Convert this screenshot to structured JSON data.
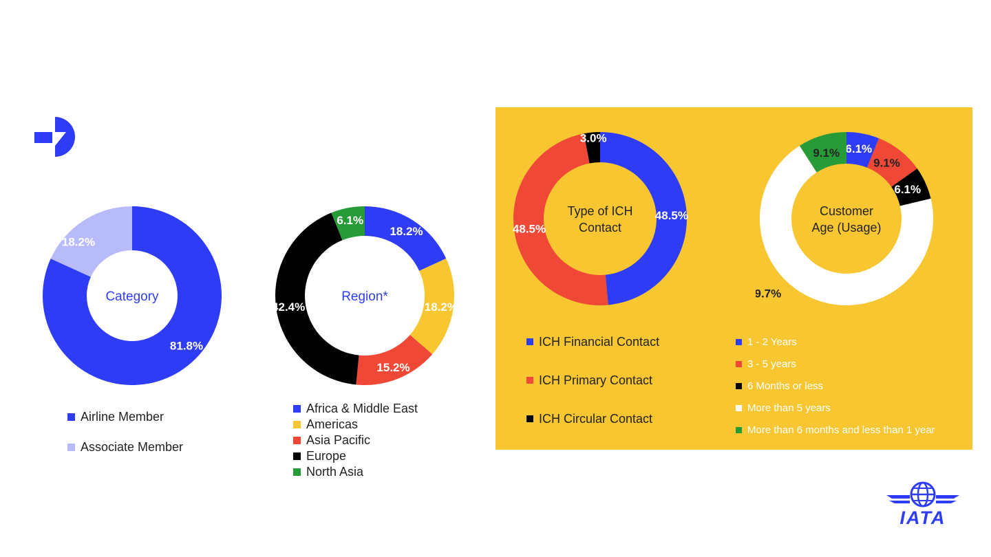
{
  "colors": {
    "blue": "#2e3cf5",
    "light_blue": "#b8bbf9",
    "yellow": "#f8c631",
    "red": "#f04836",
    "black": "#000000",
    "green": "#279b37",
    "white": "#ffffff",
    "panel": "#f8c631"
  },
  "chart_data": [
    {
      "type": "pie",
      "donut": true,
      "center_label": "Category",
      "series": [
        {
          "name": "Airline Member",
          "value": 81.8,
          "label": "81.8%",
          "color": "#2e3cf5"
        },
        {
          "name": "Associate Member",
          "value": 18.2,
          "label": "18.2%",
          "color": "#b8bbf9"
        }
      ],
      "legend": "bottom"
    },
    {
      "type": "pie",
      "donut": true,
      "center_label": "Region*",
      "series": [
        {
          "name": "Africa & Middle East",
          "value": 18.2,
          "label": "18.2%",
          "color": "#2e3cf5"
        },
        {
          "name": "Americas",
          "value": 18.2,
          "label": "18.2%",
          "color": "#f8c631"
        },
        {
          "name": "Asia Pacific",
          "value": 15.2,
          "label": "15.2%",
          "color": "#f04836"
        },
        {
          "name": "Europe",
          "value": 42.4,
          "label": "42.4%",
          "color": "#000000"
        },
        {
          "name": "North Asia",
          "value": 6.1,
          "label": "6.1%",
          "color": "#279b37"
        }
      ],
      "legend": "bottom"
    },
    {
      "type": "pie",
      "donut": true,
      "center_label": "Type of ICH Contact",
      "series": [
        {
          "name": "ICH Financial Contact",
          "value": 48.5,
          "label": "48.5%",
          "color": "#2e3cf5"
        },
        {
          "name": "ICH Primary Contact",
          "value": 48.5,
          "label": "48.5%",
          "color": "#f04836"
        },
        {
          "name": "ICH Circular Contact",
          "value": 3.0,
          "label": "3.0%",
          "color": "#000000"
        }
      ],
      "legend": "bottom"
    },
    {
      "type": "pie",
      "donut": true,
      "center_label": "Customer Age (Usage)",
      "series": [
        {
          "name": "1 - 2 Years",
          "value": 6.1,
          "label": "6.1%",
          "color": "#2e3cf5"
        },
        {
          "name": "3 - 5 years",
          "value": 9.1,
          "label": "9.1%",
          "color": "#f04836"
        },
        {
          "name": "6 Months or less",
          "value": 6.1,
          "label": "6.1%",
          "color": "#000000"
        },
        {
          "name": "More than 5 years",
          "value": 69.7,
          "label": "69.7%",
          "color": "#ffffff"
        },
        {
          "name": "More than 6 months and less than 1 year",
          "value": 9.1,
          "label": "9.1%",
          "color": "#279b37"
        }
      ],
      "legend": "bottom"
    }
  ],
  "brand": {
    "top_left_icon": "arrow-d-logo-icon",
    "iata_logo_icon": "iata-globe-wings-icon",
    "iata_text": "IATA"
  }
}
